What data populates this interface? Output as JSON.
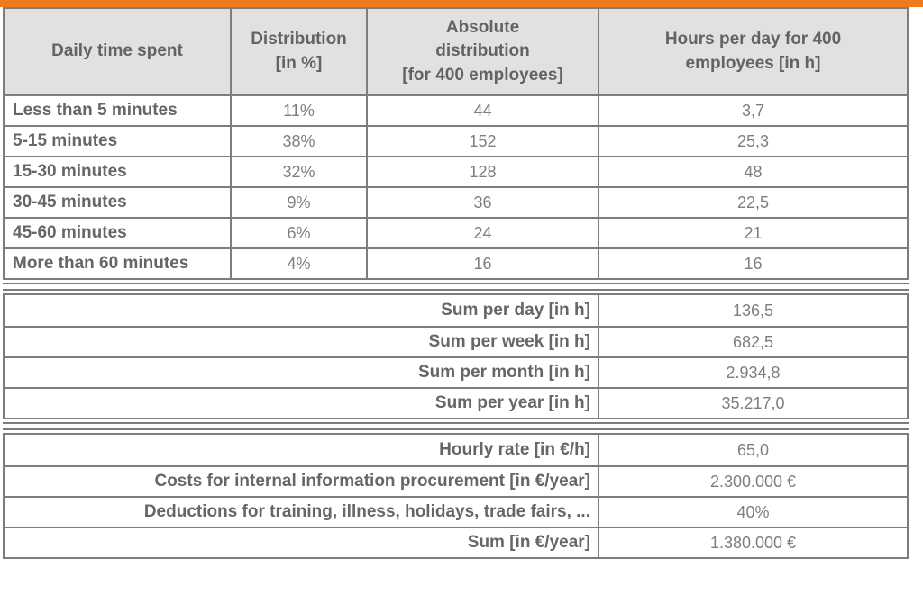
{
  "colors": {
    "accent_orange": "#ee7a1d",
    "header_bg": "#e1e1e1",
    "border_gray": "#7d7d7d",
    "label_text": "#666666",
    "value_text": "#7e7e7e"
  },
  "table": {
    "headers": {
      "col1": "Daily time spent",
      "col2": [
        "Distribution",
        "[in %]"
      ],
      "col3": [
        "Absolute",
        "distribution",
        "[for 400 employees]"
      ],
      "col4": [
        "Hours per day for 400",
        "employees [in h]"
      ]
    },
    "rows": [
      {
        "label": "Less than 5 minutes",
        "distribution": "11%",
        "absolute": "44",
        "hours": "3,7"
      },
      {
        "label": "5-15 minutes",
        "distribution": "38%",
        "absolute": "152",
        "hours": "25,3"
      },
      {
        "label": "15-30 minutes",
        "distribution": "32%",
        "absolute": "128",
        "hours": "48"
      },
      {
        "label": "30-45 minutes",
        "distribution": "9%",
        "absolute": "36",
        "hours": "22,5"
      },
      {
        "label": "45-60 minutes",
        "distribution": "6%",
        "absolute": "24",
        "hours": "21"
      },
      {
        "label": "More than 60 minutes",
        "distribution": "4%",
        "absolute": "16",
        "hours": "16"
      }
    ],
    "sums_hours": [
      {
        "label": "Sum per day [in h]",
        "value": "136,5"
      },
      {
        "label": "Sum per week [in h]",
        "value": "682,5"
      },
      {
        "label": "Sum per month [in h]",
        "value": "2.934,8"
      },
      {
        "label": "Sum per year [in h]",
        "value": "35.217,0"
      }
    ],
    "costs": [
      {
        "label": "Hourly rate [in €/h]",
        "value": "65,0"
      },
      {
        "label": "Costs for internal information procurement [in €/year]",
        "value": "2.300.000 €"
      },
      {
        "label": "Deductions for training, illness, holidays, trade fairs, ...",
        "value": "40%"
      },
      {
        "label": "Sum [in €/year]",
        "value": "1.380.000 €"
      }
    ]
  }
}
